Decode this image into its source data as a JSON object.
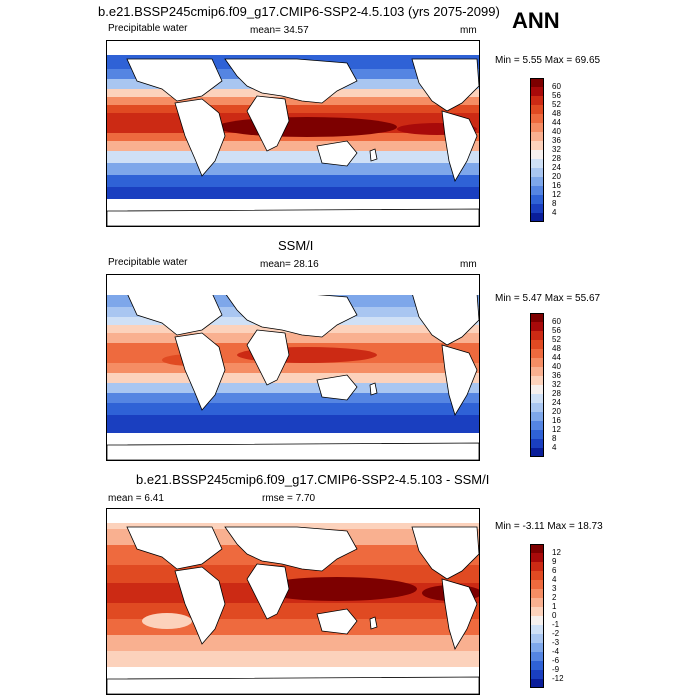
{
  "season": "ANN",
  "panels": [
    {
      "title": "b.e21.BSSP245cmip6.f09_g17.CMIP6-SSP2-4.5.103 (yrs 2075-2099)",
      "left_label": "Precipitable water",
      "center_label": "mean=  34.57",
      "right_label": "mm",
      "minmax": "Min =   5.55 Max =  69.65",
      "colorbar": {
        "levels": [
          "60",
          "56",
          "52",
          "48",
          "44",
          "40",
          "36",
          "32",
          "28",
          "24",
          "20",
          "16",
          "12",
          "8",
          "4"
        ],
        "colors": [
          "#7d0000",
          "#a80a0a",
          "#cc2a14",
          "#e04a22",
          "#ee6a3e",
          "#f58d64",
          "#f9b090",
          "#fcd2bc",
          "#f6f0ee",
          "#cfe0f6",
          "#a9c6f1",
          "#7ea7ea",
          "#5585e2",
          "#2f62d6",
          "#1a3fc0",
          "#0a1e9a"
        ]
      }
    },
    {
      "title": "SSM/I",
      "left_label": "Precipitable water",
      "center_label": "mean=  28.16",
      "right_label": "mm",
      "minmax": "Min =   5.47 Max =  55.67",
      "colorbar": {
        "levels": [
          "60",
          "56",
          "52",
          "48",
          "44",
          "40",
          "36",
          "32",
          "28",
          "24",
          "20",
          "16",
          "12",
          "8",
          "4"
        ],
        "colors": [
          "#7d0000",
          "#a80a0a",
          "#cc2a14",
          "#e04a22",
          "#ee6a3e",
          "#f58d64",
          "#f9b090",
          "#fcd2bc",
          "#f6f0ee",
          "#cfe0f6",
          "#a9c6f1",
          "#7ea7ea",
          "#5585e2",
          "#2f62d6",
          "#1a3fc0",
          "#0a1e9a"
        ]
      }
    },
    {
      "title": "b.e21.BSSP245cmip6.f09_g17.CMIP6-SSP2-4.5.103 - SSM/I",
      "left_label": "mean =   6.41",
      "center_label": "rmse =   7.70",
      "right_label": "",
      "minmax": "Min =  -3.11 Max =  18.73",
      "colorbar": {
        "levels": [
          "12",
          "9",
          "6",
          "4",
          "3",
          "2",
          "1",
          "0",
          "-1",
          "-2",
          "-3",
          "-4",
          "-6",
          "-9",
          "-12"
        ],
        "colors": [
          "#7d0000",
          "#a80a0a",
          "#cc2a14",
          "#e04a22",
          "#ee6a3e",
          "#f58d64",
          "#f9b090",
          "#fcd2bc",
          "#f6f0ee",
          "#cfe0f6",
          "#a9c6f1",
          "#7ea7ea",
          "#5585e2",
          "#2f62d6",
          "#1a3fc0",
          "#0a1e9a"
        ]
      }
    }
  ]
}
